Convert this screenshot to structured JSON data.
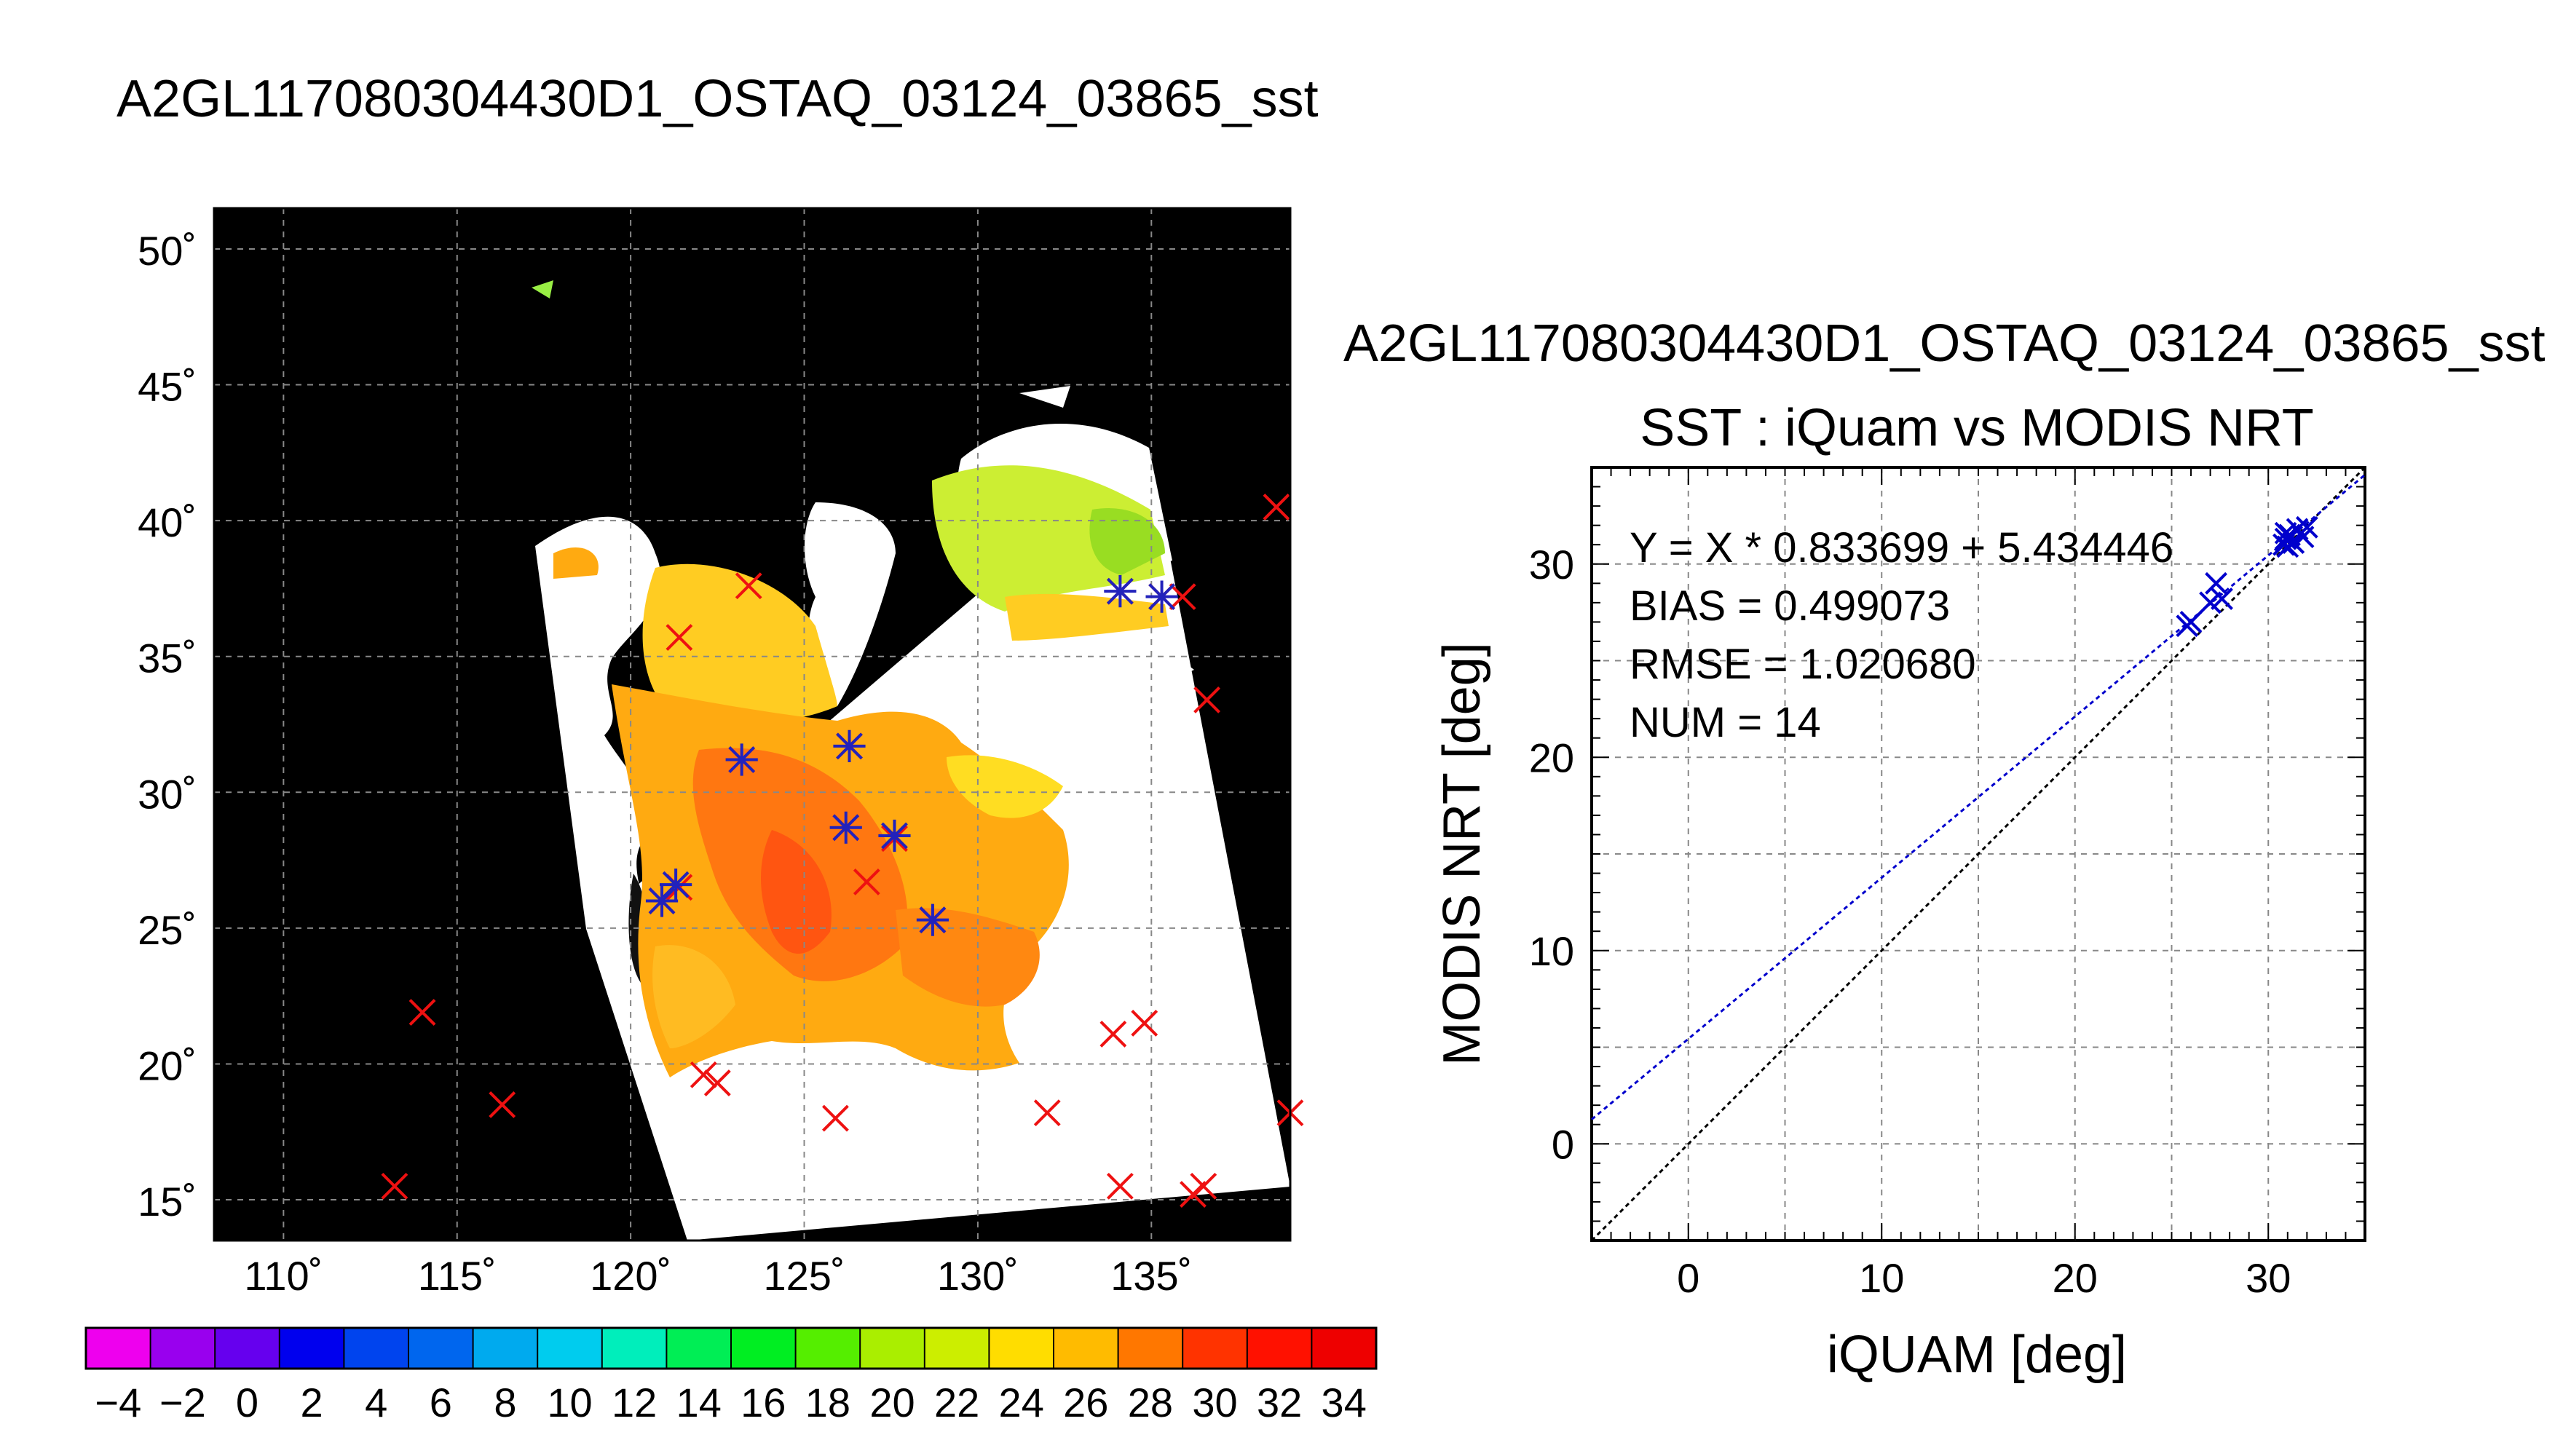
{
  "map_panel": {
    "title": "A2GL117080304430D1_OSTAQ_03124_03865_sst",
    "lat_ticks": [
      "50˚",
      "45˚",
      "40˚",
      "35˚",
      "30˚",
      "25˚",
      "20˚",
      "15˚"
    ],
    "lon_ticks": [
      "110˚",
      "115˚",
      "120˚",
      "125˚",
      "130˚",
      "135˚"
    ],
    "colorbar_labels": [
      "−4",
      "−2",
      "0",
      "2",
      "4",
      "6",
      "8",
      "10",
      "12",
      "14",
      "16",
      "18",
      "20",
      "22",
      "24",
      "26",
      "28",
      "30",
      "32",
      "34"
    ]
  },
  "chart_data": [
    {
      "type": "map",
      "title": "A2GL117080304430D1_OSTAQ_03124_03865_sst",
      "lon_range": [
        108,
        139
      ],
      "lat_range": [
        13.5,
        51.5
      ],
      "grid": true,
      "colorbar": {
        "min": -5,
        "max": 35,
        "step": 2
      },
      "matchups_iquam": [
        {
          "lon": 113.2,
          "lat": 15.5
        },
        {
          "lon": 114.0,
          "lat": 21.9
        },
        {
          "lon": 116.3,
          "lat": 18.5
        },
        {
          "lon": 121.4,
          "lat": 35.7
        },
        {
          "lon": 123.4,
          "lat": 37.6
        },
        {
          "lon": 120.9,
          "lat": 26.0
        },
        {
          "lon": 121.4,
          "lat": 26.5
        },
        {
          "lon": 123.2,
          "lat": 31.2
        },
        {
          "lon": 126.3,
          "lat": 31.7
        },
        {
          "lon": 126.2,
          "lat": 28.7
        },
        {
          "lon": 127.6,
          "lat": 28.3
        },
        {
          "lon": 126.8,
          "lat": 26.7
        },
        {
          "lon": 128.7,
          "lat": 25.3
        },
        {
          "lon": 134.1,
          "lat": 37.4
        },
        {
          "lon": 135.3,
          "lat": 37.2
        },
        {
          "lon": 135.9,
          "lat": 37.2
        },
        {
          "lon": 136.6,
          "lat": 33.4
        },
        {
          "lon": 138.6,
          "lat": 40.5
        },
        {
          "lon": 122.1,
          "lat": 19.6
        },
        {
          "lon": 122.5,
          "lat": 19.3
        },
        {
          "lon": 125.9,
          "lat": 18.0
        },
        {
          "lon": 132.0,
          "lat": 18.2
        },
        {
          "lon": 133.9,
          "lat": 21.1
        },
        {
          "lon": 134.8,
          "lat": 21.5
        },
        {
          "lon": 134.1,
          "lat": 15.5
        },
        {
          "lon": 136.2,
          "lat": 15.2
        },
        {
          "lon": 136.5,
          "lat": 15.5
        },
        {
          "lon": 139.0,
          "lat": 18.2
        }
      ],
      "matchups_modis": [
        {
          "lon": 120.9,
          "lat": 26.0
        },
        {
          "lon": 121.3,
          "lat": 26.6
        },
        {
          "lon": 123.2,
          "lat": 31.2
        },
        {
          "lon": 126.3,
          "lat": 31.7
        },
        {
          "lon": 126.2,
          "lat": 28.7
        },
        {
          "lon": 127.6,
          "lat": 28.4
        },
        {
          "lon": 128.7,
          "lat": 25.3
        },
        {
          "lon": 134.1,
          "lat": 37.4
        },
        {
          "lon": 135.3,
          "lat": 37.2
        }
      ]
    },
    {
      "type": "scatter",
      "title": "A2GL117080304430D1_OSTAQ_03124_03865_sst",
      "subtitle": "SST : iQuam vs MODIS NRT",
      "xlabel": "iQUAM [deg]",
      "ylabel": "MODIS NRT [deg]",
      "xlim": [
        -5,
        35
      ],
      "ylim": [
        -5,
        35
      ],
      "xticks": [
        0,
        10,
        20,
        30
      ],
      "yticks": [
        0,
        10,
        20,
        30
      ],
      "grid": true,
      "stats": [
        "Y = X * 0.833699 + 5.434446",
        "BIAS = 0.499073",
        "RMSE = 1.020680",
        "NUM = 14"
      ],
      "fit": {
        "slope": 0.833699,
        "intercept": 5.434446,
        "color": "#0000cc"
      },
      "identity_color": "#000000",
      "points": [
        {
          "x": 25.8,
          "y": 26.8
        },
        {
          "x": 26.0,
          "y": 27.0
        },
        {
          "x": 27.0,
          "y": 28.0
        },
        {
          "x": 27.3,
          "y": 29.0
        },
        {
          "x": 27.6,
          "y": 28.2
        },
        {
          "x": 30.8,
          "y": 31.0
        },
        {
          "x": 30.9,
          "y": 31.3
        },
        {
          "x": 31.0,
          "y": 30.9
        },
        {
          "x": 31.1,
          "y": 31.5
        },
        {
          "x": 31.3,
          "y": 31.1
        },
        {
          "x": 31.5,
          "y": 31.8
        },
        {
          "x": 31.8,
          "y": 31.4
        },
        {
          "x": 32.0,
          "y": 31.9
        },
        {
          "x": 30.9,
          "y": 31.6
        }
      ],
      "marker_color": "#0000cc"
    }
  ]
}
